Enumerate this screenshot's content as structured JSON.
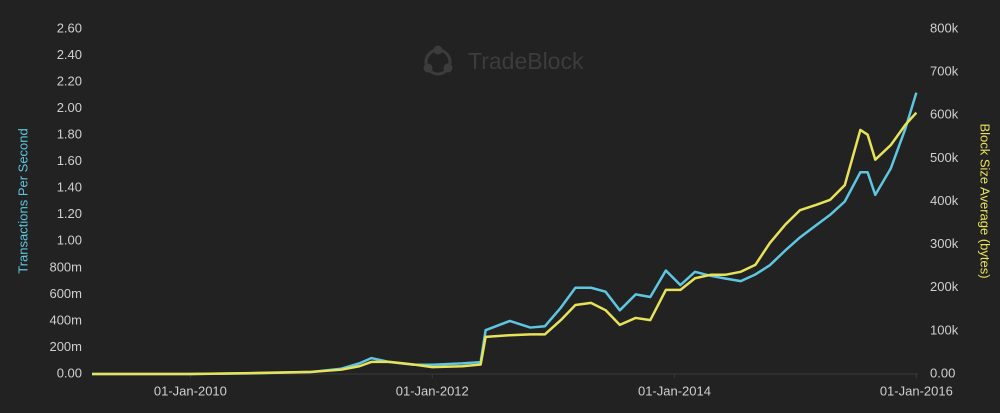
{
  "chart_data": {
    "type": "line",
    "watermark": "TradeBlock",
    "ylabel": "Transactions Per Second",
    "y2label": "Block Size Average (bytes)",
    "x": [
      "2009-03-10",
      "2010-01-01",
      "2010-07-01",
      "2011-01-01",
      "2011-04-01",
      "2011-05-26",
      "2011-07-01",
      "2011-08-25",
      "2011-11-06",
      "2012-01-01",
      "2012-04-01",
      "2012-05-26",
      "2012-06-10",
      "2012-08-22",
      "2012-10-23",
      "2012-12-06",
      "2013-01-23",
      "2013-03-08",
      "2013-04-24",
      "2013-06-07",
      "2013-07-20",
      "2013-09-06",
      "2013-10-20",
      "2013-12-06",
      "2014-01-19",
      "2014-03-04",
      "2014-04-20",
      "2014-06-03",
      "2014-07-20",
      "2014-09-02",
      "2014-10-16",
      "2014-12-01",
      "2015-01-15",
      "2015-03-04",
      "2015-04-16",
      "2015-05-30",
      "2015-07-16",
      "2015-08-07",
      "2015-08-30",
      "2015-10-16",
      "2015-11-29",
      "2016-01-01"
    ],
    "series": [
      {
        "name": "Transactions Per Second",
        "color": "#5ec6e0",
        "values": [
          0,
          0,
          0.005,
          0.015,
          0.04,
          0.08,
          0.12,
          0.09,
          0.07,
          0.07,
          0.08,
          0.09,
          0.33,
          0.4,
          0.35,
          0.36,
          0.5,
          0.65,
          0.65,
          0.62,
          0.48,
          0.6,
          0.58,
          0.78,
          0.67,
          0.77,
          0.74,
          0.72,
          0.7,
          0.75,
          0.82,
          0.93,
          1.03,
          1.12,
          1.2,
          1.3,
          1.52,
          1.52,
          1.35,
          1.55,
          1.85,
          2.12
        ]
      },
      {
        "name": "Block Size Average (bytes)",
        "color": "#e6e25a",
        "axis": "y2",
        "values": [
          0,
          0,
          2000,
          5000,
          10000,
          18000,
          28000,
          28000,
          22000,
          16000,
          18000,
          22000,
          86000,
          90000,
          92000,
          92000,
          125000,
          160000,
          165000,
          148000,
          114000,
          130000,
          125000,
          195000,
          195000,
          222000,
          230000,
          230000,
          237000,
          253000,
          304000,
          346000,
          380000,
          392000,
          404000,
          438000,
          566000,
          555000,
          497000,
          531000,
          578000,
          606000
        ]
      }
    ],
    "xlim": [
      "2009-03-10",
      "2016-01-06"
    ],
    "xticks": [
      {
        "value": "2010-01-01",
        "label": "01-Jan-2010"
      },
      {
        "value": "2012-01-01",
        "label": "01-Jan-2012"
      },
      {
        "value": "2014-01-01",
        "label": "01-Jan-2014"
      },
      {
        "value": "2016-01-01",
        "label": "01-Jan-2016"
      }
    ],
    "ylim": [
      0,
      2.6
    ],
    "yticks": [
      {
        "value": 0,
        "label": "0.00"
      },
      {
        "value": 0.2,
        "label": "200m"
      },
      {
        "value": 0.4,
        "label": "400m"
      },
      {
        "value": 0.6,
        "label": "600m"
      },
      {
        "value": 0.8,
        "label": "800m"
      },
      {
        "value": 1,
        "label": "1.00"
      },
      {
        "value": 1.2,
        "label": "1.20"
      },
      {
        "value": 1.4,
        "label": "1.40"
      },
      {
        "value": 1.6,
        "label": "1.60"
      },
      {
        "value": 1.8,
        "label": "1.80"
      },
      {
        "value": 2,
        "label": "2.00"
      },
      {
        "value": 2.2,
        "label": "2.20"
      },
      {
        "value": 2.4,
        "label": "2.40"
      },
      {
        "value": 2.6,
        "label": "2.60"
      }
    ],
    "y2lim": [
      0,
      800000
    ],
    "y2ticks": [
      {
        "value": 0,
        "label": "0.00"
      },
      {
        "value": 100000,
        "label": "100k"
      },
      {
        "value": 200000,
        "label": "200k"
      },
      {
        "value": 300000,
        "label": "300k"
      },
      {
        "value": 400000,
        "label": "400k"
      },
      {
        "value": 500000,
        "label": "500k"
      },
      {
        "value": 600000,
        "label": "600k"
      },
      {
        "value": 700000,
        "label": "700k"
      },
      {
        "value": 800000,
        "label": "800k"
      }
    ],
    "grid": false
  }
}
